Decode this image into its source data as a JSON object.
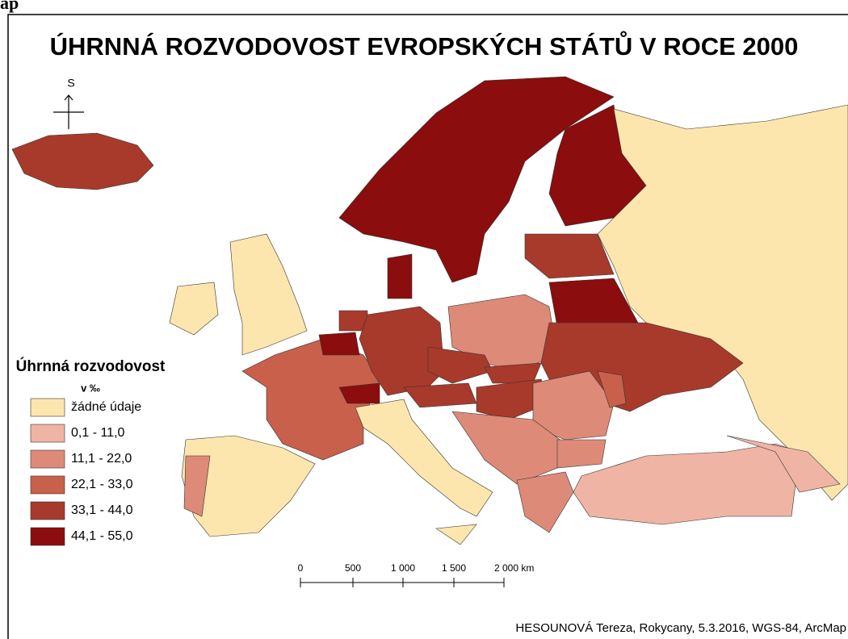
{
  "header_fragment": "ap",
  "title": "ÚHRNNÁ ROZVODOVOST EVROPSKÝCH STÁTŮ V ROCE 2000",
  "compass": "S",
  "legend": {
    "title": "Úhrnná rozvodovost",
    "unit": "v ‰",
    "items": [
      {
        "label": "žádné údaje",
        "color": "#fde6ad"
      },
      {
        "label": "0,1 - 11,0",
        "color": "#f0b4a4"
      },
      {
        "label": "11,1 - 22,0",
        "color": "#dd8a78"
      },
      {
        "label": "22,1 - 33,0",
        "color": "#c8604b"
      },
      {
        "label": "33,1 - 44,0",
        "color": "#a83a2b"
      },
      {
        "label": "44,1 - 55,0",
        "color": "#8b0d0d"
      }
    ]
  },
  "scale_bar": {
    "labels": [
      "0",
      "500",
      "1 000",
      "1 500",
      "2 000 km"
    ]
  },
  "credit": "HESOUNOVÁ Tereza, Rokycany, 5.3.2016, WGS-84, ArcMap"
}
